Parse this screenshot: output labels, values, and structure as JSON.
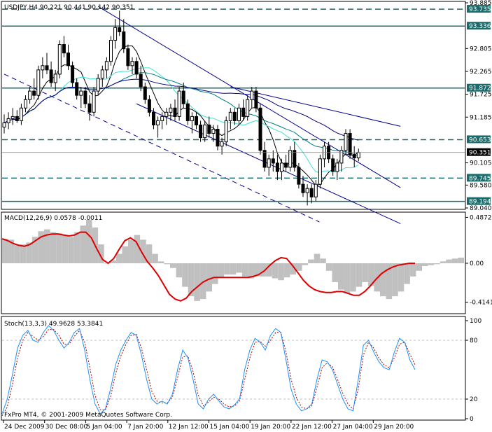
{
  "header": {
    "price_title": "USDJPY,H4  90.221 90.441 90.142 90.351",
    "macd_title": "MACD(12,26,9) 0.0578 -0.0011",
    "stoch_title": "Stoch(13,3,3) 49.9628 53.3841",
    "copyright": "FxPro MT4, © 2001-2009 MetaQuotes Software Corp."
  },
  "colors": {
    "frame": "#000000",
    "candle": "#000000",
    "hline": "#1a6b6b",
    "channel": "#00008b",
    "ma_black": "#000000",
    "ma_teal": "#008080",
    "ma_aqua": "#40e0d0",
    "ma_navy": "#000080",
    "macd_hist": "#c0c0c0",
    "macd_signal": "#dd0000",
    "stoch_main": "#1e90ff",
    "stoch_signal": "#aa0000",
    "label_bg": "#1a6b6b",
    "current_bg": "#000000"
  },
  "chart_data": [
    {
      "type": "candlestick",
      "symbol": "USDJPY",
      "timeframe": "H4",
      "ohlc_last": {
        "open": 90.221,
        "high": 90.441,
        "low": 90.142,
        "close": 90.351
      },
      "ylim": [
        89.04,
        93.885
      ],
      "ticks": [
        {
          "v": 93.885,
          "label": "93.885"
        },
        {
          "v": 92.805,
          "label": "92.805"
        },
        {
          "v": 92.265,
          "label": "92.265"
        },
        {
          "v": 91.725,
          "label": "91.725"
        },
        {
          "v": 91.185,
          "label": "91.185"
        },
        {
          "v": 90.105,
          "label": "90.105"
        },
        {
          "v": 89.58,
          "label": "89.580"
        },
        {
          "v": 89.04,
          "label": "89.040"
        }
      ],
      "levels": [
        {
          "v": 93.735,
          "label": "93.735",
          "style": "dashed"
        },
        {
          "v": 93.336,
          "label": "93.336",
          "style": "solid"
        },
        {
          "v": 91.872,
          "label": "91.872",
          "style": "solid"
        },
        {
          "v": 90.653,
          "label": "90.653",
          "style": "dashed"
        },
        {
          "v": 89.745,
          "label": "89.745",
          "style": "dashed"
        },
        {
          "v": 89.194,
          "label": "89.194",
          "style": "solid"
        }
      ],
      "current": {
        "v": 90.351,
        "label": "90.351"
      },
      "candles": [
        [
          90.95,
          91.25,
          90.8,
          91.05
        ],
        [
          91.05,
          91.3,
          90.9,
          91.15
        ],
        [
          91.15,
          91.4,
          91.0,
          91.2
        ],
        [
          91.2,
          91.35,
          91.05,
          91.1
        ],
        [
          91.1,
          91.5,
          91.0,
          91.4
        ],
        [
          91.4,
          91.7,
          91.3,
          91.6
        ],
        [
          91.6,
          91.9,
          91.5,
          91.8
        ],
        [
          91.8,
          92.1,
          91.6,
          91.7
        ],
        [
          91.7,
          92.4,
          91.6,
          92.3
        ],
        [
          92.3,
          92.6,
          92.1,
          92.4
        ],
        [
          92.4,
          92.7,
          92.2,
          92.3
        ],
        [
          92.3,
          92.5,
          91.9,
          92.0
        ],
        [
          92.0,
          92.3,
          91.8,
          92.2
        ],
        [
          92.2,
          93.0,
          92.1,
          92.9
        ],
        [
          92.9,
          93.1,
          92.6,
          92.7
        ],
        [
          92.7,
          92.9,
          92.3,
          92.4
        ],
        [
          92.4,
          92.5,
          91.9,
          92.0
        ],
        [
          92.0,
          92.1,
          91.6,
          91.7
        ],
        [
          91.7,
          91.9,
          91.4,
          91.8
        ],
        [
          91.8,
          91.9,
          91.4,
          91.5
        ],
        [
          91.5,
          91.7,
          91.1,
          91.3
        ],
        [
          91.3,
          91.9,
          91.2,
          91.8
        ],
        [
          91.8,
          92.2,
          91.7,
          92.1
        ],
        [
          92.1,
          92.4,
          91.9,
          92.3
        ],
        [
          92.3,
          92.6,
          92.1,
          92.5
        ],
        [
          92.5,
          93.1,
          92.4,
          93.0
        ],
        [
          93.0,
          93.5,
          92.8,
          93.3
        ],
        [
          93.3,
          93.7,
          93.1,
          93.2
        ],
        [
          93.2,
          93.5,
          92.7,
          92.8
        ],
        [
          92.8,
          92.9,
          92.3,
          92.4
        ],
        [
          92.4,
          92.6,
          92.2,
          92.5
        ],
        [
          92.5,
          92.6,
          92.1,
          92.2
        ],
        [
          92.2,
          92.4,
          91.8,
          91.9
        ],
        [
          91.9,
          92.0,
          91.5,
          91.6
        ],
        [
          91.6,
          91.7,
          91.2,
          91.3
        ],
        [
          91.3,
          91.4,
          90.9,
          91.0
        ],
        [
          91.0,
          91.2,
          90.7,
          91.1
        ],
        [
          91.1,
          91.3,
          90.9,
          91.2
        ],
        [
          91.2,
          91.4,
          91.0,
          91.3
        ],
        [
          91.3,
          91.5,
          91.1,
          91.4
        ],
        [
          91.4,
          91.6,
          91.1,
          91.2
        ],
        [
          91.2,
          91.9,
          91.1,
          91.8
        ],
        [
          91.8,
          92.0,
          91.4,
          91.5
        ],
        [
          91.5,
          91.6,
          91.0,
          91.1
        ],
        [
          91.1,
          91.3,
          90.8,
          91.2
        ],
        [
          91.2,
          91.3,
          90.9,
          91.0
        ],
        [
          91.0,
          91.1,
          90.6,
          90.7
        ],
        [
          90.7,
          91.1,
          90.6,
          91.0
        ],
        [
          91.0,
          91.2,
          90.7,
          90.8
        ],
        [
          90.8,
          91.0,
          90.6,
          90.9
        ],
        [
          90.9,
          91.0,
          90.4,
          90.5
        ],
        [
          90.5,
          90.7,
          90.3,
          90.6
        ],
        [
          90.6,
          91.2,
          90.5,
          91.1
        ],
        [
          91.1,
          91.4,
          90.9,
          91.3
        ],
        [
          91.3,
          91.4,
          91.0,
          91.1
        ],
        [
          91.1,
          91.5,
          91.0,
          91.4
        ],
        [
          91.4,
          91.6,
          91.1,
          91.2
        ],
        [
          91.2,
          91.7,
          91.1,
          91.6
        ],
        [
          91.6,
          91.9,
          91.4,
          91.8
        ],
        [
          91.8,
          91.9,
          91.3,
          91.4
        ],
        [
          91.4,
          91.5,
          90.3,
          90.4
        ],
        [
          90.4,
          90.6,
          89.9,
          90.0
        ],
        [
          90.0,
          90.3,
          89.8,
          90.2
        ],
        [
          90.2,
          90.4,
          89.9,
          90.1
        ],
        [
          90.1,
          90.3,
          89.7,
          89.9
        ],
        [
          89.9,
          90.2,
          89.7,
          90.1
        ],
        [
          90.1,
          90.3,
          89.9,
          90.0
        ],
        [
          90.0,
          90.5,
          89.9,
          90.4
        ],
        [
          90.4,
          90.6,
          89.9,
          90.0
        ],
        [
          90.0,
          90.1,
          89.5,
          89.6
        ],
        [
          89.6,
          89.8,
          89.3,
          89.4
        ],
        [
          89.4,
          89.6,
          89.1,
          89.5
        ],
        [
          89.5,
          89.6,
          89.15,
          89.3
        ],
        [
          89.3,
          89.7,
          89.2,
          89.6
        ],
        [
          89.6,
          90.3,
          89.5,
          90.2
        ],
        [
          90.2,
          90.6,
          90.0,
          90.5
        ],
        [
          90.5,
          90.6,
          90.1,
          90.2
        ],
        [
          90.2,
          90.3,
          89.8,
          89.9
        ],
        [
          89.9,
          90.2,
          89.7,
          90.1
        ],
        [
          90.1,
          90.5,
          89.9,
          90.4
        ],
        [
          90.4,
          90.9,
          90.3,
          90.8
        ],
        [
          90.8,
          90.9,
          90.2,
          90.3
        ],
        [
          90.3,
          90.5,
          90.0,
          90.221
        ],
        [
          90.221,
          90.441,
          90.142,
          90.351
        ]
      ],
      "channel_lines": [
        {
          "from": [
            22,
            93.8
          ],
          "to": [
            83,
            89.85
          ],
          "style": "solid"
        },
        {
          "from": [
            0,
            92.2
          ],
          "to": [
            64,
            89.04
          ],
          "style": "dashed"
        },
        {
          "from": [
            31,
            91.5
          ],
          "to": [
            83,
            89.0
          ],
          "style": "solid"
        },
        {
          "from": [
            53,
            91.9
          ],
          "to": [
            83,
            91.3
          ],
          "style": "solid"
        }
      ]
    },
    {
      "type": "macd",
      "params": "12,26,9",
      "macd": 0.0578,
      "signal": -0.0011,
      "ylim": [
        -0.52,
        0.52
      ],
      "ticks": [
        {
          "v": 0.4872,
          "label": "0.4872"
        },
        {
          "v": 0.0,
          "label": "0.00"
        },
        {
          "v": -0.4141,
          "label": "-0.4141"
        }
      ],
      "histogram": [
        0.26,
        0.25,
        0.2,
        0.2,
        0.22,
        0.28,
        0.34,
        0.36,
        0.33,
        0.32,
        0.3,
        0.28,
        0.33,
        0.4,
        0.46,
        0.38,
        0.2,
        0.0,
        0.03,
        0.1,
        0.18,
        0.25,
        0.3,
        0.25,
        0.2,
        0.1,
        0.02,
        -0.01,
        -0.05,
        -0.15,
        -0.25,
        -0.35,
        -0.4,
        -0.38,
        -0.3,
        -0.22,
        -0.15,
        -0.12,
        -0.12,
        -0.1,
        -0.14,
        -0.16,
        -0.14,
        -0.14,
        -0.14,
        -0.16,
        -0.18,
        -0.15,
        -0.12,
        -0.08,
        -0.02,
        0.04,
        0.1,
        0.05,
        -0.08,
        -0.2,
        -0.28,
        -0.32,
        -0.3,
        -0.25,
        -0.2,
        -0.24,
        -0.3,
        -0.35,
        -0.38,
        -0.35,
        -0.3,
        -0.22,
        -0.14,
        -0.08,
        -0.03,
        -0.02,
        -0.01,
        0.02,
        0.04,
        0.05,
        0.06
      ],
      "signal_line": [
        0.26,
        0.24,
        0.21,
        0.19,
        0.18,
        0.2,
        0.24,
        0.28,
        0.3,
        0.31,
        0.31,
        0.3,
        0.29,
        0.3,
        0.33,
        0.33,
        0.27,
        0.15,
        0.04,
        0.0,
        0.05,
        0.15,
        0.24,
        0.27,
        0.23,
        0.12,
        0.02,
        -0.05,
        -0.13,
        -0.23,
        -0.33,
        -0.38,
        -0.4,
        -0.37,
        -0.3,
        -0.25,
        -0.2,
        -0.17,
        -0.15,
        -0.15,
        -0.15,
        -0.15,
        -0.15,
        -0.15,
        -0.15,
        -0.14,
        -0.12,
        -0.08,
        -0.02,
        0.03,
        0.06,
        0.05,
        -0.02,
        -0.1,
        -0.18,
        -0.24,
        -0.28,
        -0.3,
        -0.31,
        -0.31,
        -0.3,
        -0.3,
        -0.32,
        -0.34,
        -0.34,
        -0.3,
        -0.24,
        -0.17,
        -0.11,
        -0.07,
        -0.04,
        -0.02,
        -0.01,
        0.0,
        -0.0011
      ]
    },
    {
      "type": "stochastic",
      "params": "13,3,3",
      "main": 49.9628,
      "signal": 53.3841,
      "ylim": [
        0,
        100
      ],
      "ticks": [
        {
          "v": 100,
          "label": "100"
        },
        {
          "v": 80,
          "label": "80"
        },
        {
          "v": 20,
          "label": "20"
        },
        {
          "v": 0,
          "label": "0"
        }
      ],
      "main_line": [
        5,
        20,
        45,
        72,
        85,
        90,
        80,
        78,
        88,
        95,
        90,
        80,
        72,
        78,
        88,
        92,
        70,
        40,
        15,
        5,
        10,
        30,
        55,
        70,
        80,
        88,
        85,
        65,
        40,
        20,
        15,
        18,
        15,
        25,
        50,
        70,
        62,
        40,
        15,
        10,
        20,
        25,
        18,
        12,
        10,
        14,
        20,
        50,
        70,
        82,
        78,
        70,
        85,
        92,
        88,
        60,
        30,
        15,
        8,
        10,
        15,
        40,
        60,
        58,
        50,
        35,
        20,
        10,
        8,
        40,
        75,
        80,
        68,
        58,
        52,
        50,
        68,
        82,
        78,
        60,
        50
      ],
      "signal_line": [
        3,
        12,
        35,
        62,
        80,
        88,
        84,
        80,
        84,
        91,
        91,
        85,
        76,
        76,
        84,
        90,
        78,
        52,
        24,
        9,
        9,
        22,
        46,
        64,
        76,
        85,
        86,
        72,
        50,
        28,
        18,
        16,
        16,
        22,
        42,
        63,
        64,
        48,
        24,
        13,
        17,
        22,
        20,
        15,
        12,
        13,
        18,
        40,
        62,
        78,
        79,
        74,
        80,
        88,
        88,
        68,
        40,
        22,
        12,
        10,
        13,
        32,
        52,
        57,
        53,
        40,
        26,
        15,
        10,
        30,
        65,
        78,
        72,
        62,
        55,
        52,
        62,
        76,
        78,
        66,
        55
      ]
    }
  ],
  "x_axis": {
    "labels": [
      {
        "i": 0,
        "label": "24 Dec 2009"
      },
      {
        "i": 12,
        "label": "30 Dec 08:00"
      },
      {
        "i": 23,
        "label": "5 Jan 04:00"
      },
      {
        "i": 35,
        "label": "7 Jan 20:00"
      },
      {
        "i": 47,
        "label": "12 Jan 12:00"
      },
      {
        "i": 58,
        "label": "15 Jan 04:00"
      },
      {
        "i": 70,
        "label": "19 Jan 20:00"
      },
      {
        "i": 81,
        "label": "22 Jan 12:00"
      },
      {
        "i": 92,
        "label": "27 Jan 04:00"
      },
      {
        "i": 103,
        "label": "29 Jan 20:00"
      }
    ]
  }
}
